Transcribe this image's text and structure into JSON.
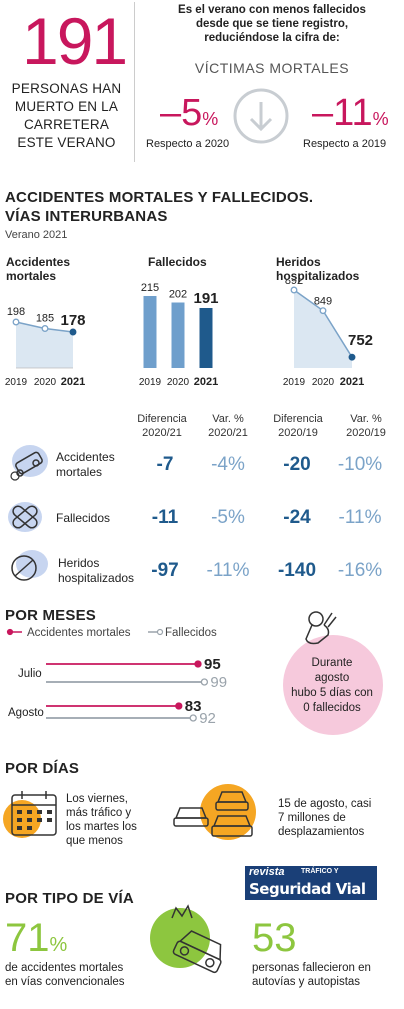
{
  "summary": {
    "big_number": "191",
    "big_caption": [
      "PERSONAS HAN",
      "MUERTO EN LA",
      "CARRETERA",
      "ESTE VERANO"
    ],
    "intro": [
      "Es el verano con menos fallecidos",
      "desde que se tiene registro,",
      "reduciéndose la cifra de:"
    ],
    "victims_label": "VÍCTIMAS MORTALES",
    "change_2020": {
      "value": "–5",
      "unit": "%",
      "label": "Respecto a 2020"
    },
    "change_2019": {
      "value": "–11",
      "unit": "%",
      "label": "Respecto a 2019"
    }
  },
  "section1": {
    "title_line1": "ACCIDENTES MORTALES Y FALLECIDOS.",
    "title_line2": "VÍAS INTERURBANAS",
    "subtitle": "Verano 2021"
  },
  "chart_data": [
    {
      "type": "area",
      "title": "Accidentes mortales",
      "title_lines": [
        "Accidentes",
        "mortales"
      ],
      "categories": [
        "2019",
        "2020",
        "2021"
      ],
      "values": [
        198,
        185,
        178
      ]
    },
    {
      "type": "bar",
      "title": "Fallecidos",
      "categories": [
        "2019",
        "2020",
        "2021"
      ],
      "values": [
        215,
        202,
        191
      ]
    },
    {
      "type": "area",
      "title": "Heridos hospitalizados",
      "title_lines": [
        "Heridos",
        "hospitalizados"
      ],
      "categories": [
        "2019",
        "2020",
        "2021"
      ],
      "values": [
        892,
        849,
        752
      ]
    },
    {
      "type": "bar",
      "title": "POR MESES",
      "orientation": "horizontal",
      "categories": [
        "Julio",
        "Agosto"
      ],
      "series": [
        {
          "name": "Accidentes mortales",
          "values": [
            95,
            83
          ],
          "color": "#c8175d"
        },
        {
          "name": "Fallecidos",
          "values": [
            99,
            92
          ],
          "color": "#9aa3ab"
        }
      ]
    }
  ],
  "table": {
    "headers": [
      [
        "Diferencia",
        "2020/21"
      ],
      [
        "Var. %",
        "2020/21"
      ],
      [
        "Diferencia",
        "2020/19"
      ],
      [
        "Var. %",
        "2020/19"
      ]
    ],
    "rows": [
      {
        "label": [
          "Accidentes",
          "mortales"
        ],
        "values": [
          "-7",
          "-4%",
          "-20",
          "-10%"
        ]
      },
      {
        "label": [
          "Fallecidos"
        ],
        "values": [
          "-11",
          "-5%",
          "-24",
          "-11%"
        ]
      },
      {
        "label": [
          "Heridos",
          "hospitalizados"
        ],
        "values": [
          "-97",
          "-11%",
          "-140",
          "-16%"
        ]
      }
    ]
  },
  "months": {
    "title": "POR MESES",
    "callout": [
      "Durante",
      "agosto",
      "hubo 5 días con",
      "0 fallecidos"
    ]
  },
  "days": {
    "title": "POR DÍAS",
    "text1": [
      "Los viernes,",
      "más tráfico y",
      "los martes los",
      "que menos"
    ],
    "text2": [
      "15 de agosto, casi",
      "7 millones de",
      "desplazamientos"
    ]
  },
  "roads": {
    "title": "POR TIPO DE VÍA",
    "stat1": {
      "value": "71",
      "unit": "%",
      "label": [
        "de accidentes mortales",
        "en vías convencionales"
      ]
    },
    "stat2": {
      "value": "53",
      "label": [
        "personas fallecieron en",
        "autovías y autopistas"
      ]
    }
  },
  "logo": {
    "line1": "revista",
    "line2": "TRÁFICO Y",
    "line3": "Seguridad Vial"
  },
  "colors": {
    "magenta": "#c8175d",
    "dark_blue": "#1f5a8c",
    "light_blue": "#7ba3c8",
    "bar_light": "#6f9fcc",
    "area_fill": "#dbe7f2",
    "orange": "#f5a623",
    "pink": "#f6c9dc",
    "green": "#8dc63f",
    "gray": "#9aa3ab"
  }
}
